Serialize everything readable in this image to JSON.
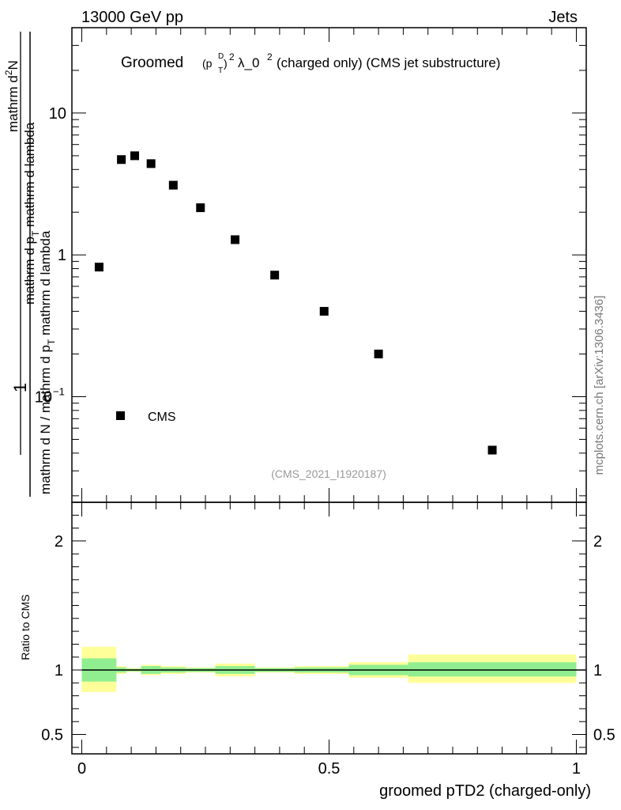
{
  "header": {
    "left": "13000 GeV pp",
    "right": "Jets"
  },
  "title": {
    "prefix": "Groomed",
    "suffix": "λ_0",
    "suffix_sup": "2",
    "tail": " (charged only) (CMS jet substructure)",
    "p_sub": "T",
    "p_sup": "D",
    "paren_sup": "2"
  },
  "analysis_tag": "(CMS_2021_I1920187)",
  "watermark": "mcplots.cern.ch [arXiv:1306.3436]",
  "ylabel_upper": {
    "numerator_lead": "1",
    "denominator": "mathrm d N / mathrm d p",
    "denominator_sub": "T",
    "denominator_tail": " mathrm d lambda",
    "full_num": "mathrm d",
    "full_num_sup": "2",
    "full_num_tail": "N",
    "full_den": "mathrm d p",
    "full_den_sub": "T",
    "full_den_tail": " mathrm d lambda"
  },
  "ylabel_lower": "Ratio to CMS",
  "xlabel": "groomed pTD2 (charged-only)",
  "legend": {
    "label": "CMS"
  },
  "colors": {
    "band_inner": "#90ee90",
    "band_outer": "#ffff99",
    "marker": "#000000"
  },
  "chart_data": [
    {
      "type": "scatter",
      "scale": "log",
      "ylim": [
        0.018,
        40
      ],
      "xlim": [
        -0.02,
        1.02
      ],
      "y_ticks": [
        {
          "value": 10,
          "label": "10"
        },
        {
          "value": 1,
          "label": "1"
        },
        {
          "value": 0.1,
          "label": "10",
          "sup": "−1"
        }
      ],
      "series": [
        {
          "name": "CMS",
          "points": [
            {
              "x": 0.035,
              "y": 0.82
            },
            {
              "x": 0.08,
              "y": 4.7
            },
            {
              "x": 0.107,
              "y": 5.0
            },
            {
              "x": 0.14,
              "y": 4.4
            },
            {
              "x": 0.185,
              "y": 3.1
            },
            {
              "x": 0.24,
              "y": 2.15
            },
            {
              "x": 0.31,
              "y": 1.28
            },
            {
              "x": 0.39,
              "y": 0.72
            },
            {
              "x": 0.49,
              "y": 0.4
            },
            {
              "x": 0.6,
              "y": 0.2
            },
            {
              "x": 0.83,
              "y": 0.042
            }
          ]
        }
      ]
    },
    {
      "type": "area",
      "name": "ratio",
      "xlim": [
        -0.02,
        1.02
      ],
      "ylim": [
        0.35,
        2.3
      ],
      "y_ticks": [
        {
          "value": 2,
          "label": "2"
        },
        {
          "value": 1,
          "label": "1"
        },
        {
          "value": 0.5,
          "label": "0.5"
        }
      ],
      "x_ticks": [
        {
          "value": 0,
          "label": "0"
        },
        {
          "value": 0.5,
          "label": "0.5"
        },
        {
          "value": 1,
          "label": "1"
        }
      ],
      "reference_line": 1,
      "bins": [
        {
          "x0": 0.0,
          "x1": 0.07,
          "inner": [
            0.91,
            1.09
          ],
          "outer": [
            0.83,
            1.18
          ]
        },
        {
          "x0": 0.07,
          "x1": 0.09,
          "inner": [
            0.98,
            1.02
          ],
          "outer": [
            0.97,
            1.03
          ]
        },
        {
          "x0": 0.09,
          "x1": 0.12,
          "inner": [
            0.99,
            1.01
          ],
          "outer": [
            0.985,
            1.015
          ]
        },
        {
          "x0": 0.12,
          "x1": 0.16,
          "inner": [
            0.97,
            1.03
          ],
          "outer": [
            0.96,
            1.04
          ]
        },
        {
          "x0": 0.16,
          "x1": 0.21,
          "inner": [
            0.98,
            1.02
          ],
          "outer": [
            0.97,
            1.03
          ]
        },
        {
          "x0": 0.21,
          "x1": 0.27,
          "inner": [
            0.985,
            1.015
          ],
          "outer": [
            0.98,
            1.02
          ]
        },
        {
          "x0": 0.27,
          "x1": 0.35,
          "inner": [
            0.97,
            1.03
          ],
          "outer": [
            0.95,
            1.05
          ]
        },
        {
          "x0": 0.35,
          "x1": 0.43,
          "inner": [
            0.985,
            1.015
          ],
          "outer": [
            0.98,
            1.02
          ]
        },
        {
          "x0": 0.43,
          "x1": 0.54,
          "inner": [
            0.98,
            1.02
          ],
          "outer": [
            0.97,
            1.03
          ]
        },
        {
          "x0": 0.54,
          "x1": 0.66,
          "inner": [
            0.96,
            1.04
          ],
          "outer": [
            0.94,
            1.06
          ]
        },
        {
          "x0": 0.66,
          "x1": 1.0,
          "inner": [
            0.95,
            1.06
          ],
          "outer": [
            0.9,
            1.12
          ]
        }
      ]
    }
  ]
}
